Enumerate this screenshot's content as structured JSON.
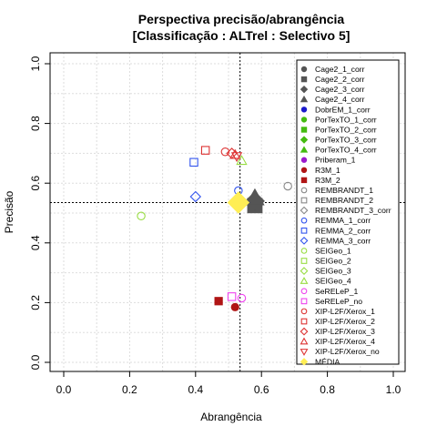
{
  "chart_data": {
    "type": "scatter",
    "title": "Perspectiva precisão/abrangência",
    "subtitle": "[Classificação : ALTrel : Selectivo 5]",
    "xlabel": "Abrangência",
    "ylabel": "Precisão",
    "xlim": [
      0,
      1
    ],
    "ylim": [
      0,
      1
    ],
    "xticks": [
      "0.0",
      "0.2",
      "0.4",
      "0.6",
      "0.8",
      "1.0"
    ],
    "yticks": [
      "0.0",
      "0.2",
      "0.4",
      "0.6",
      "0.8",
      "1.0"
    ],
    "grid": true,
    "legend_position": "right",
    "reference_lines": {
      "x": 0.535,
      "y": 0.535
    },
    "series": [
      {
        "name": "Cage2_1_corr",
        "symbol": "circle",
        "color": "#555555",
        "filled": true,
        "x": 0.58,
        "y": 0.53
      },
      {
        "name": "Cage2_2_corr",
        "symbol": "square",
        "color": "#555555",
        "filled": true,
        "x": 0.58,
        "y": 0.525
      },
      {
        "name": "Cage2_3_corr",
        "symbol": "diamond",
        "color": "#555555",
        "filled": true,
        "x": 0.58,
        "y": 0.54
      },
      {
        "name": "Cage2_4_corr",
        "symbol": "triangle",
        "color": "#555555",
        "filled": true,
        "x": 0.58,
        "y": 0.55
      },
      {
        "name": "DobrEM_1_corr",
        "symbol": "circle",
        "color": "#1a1acc",
        "filled": true,
        "x": null,
        "y": null
      },
      {
        "name": "PorTexTO_1_corr",
        "symbol": "circle",
        "color": "#44bb11",
        "filled": true,
        "x": null,
        "y": null
      },
      {
        "name": "PorTexTO_2_corr",
        "symbol": "square",
        "color": "#44bb11",
        "filled": true,
        "x": null,
        "y": null
      },
      {
        "name": "PorTexTO_3_corr",
        "symbol": "diamond",
        "color": "#44bb11",
        "filled": true,
        "x": null,
        "y": null
      },
      {
        "name": "PorTexTO_4_corr",
        "symbol": "triangle",
        "color": "#44bb11",
        "filled": true,
        "x": null,
        "y": null
      },
      {
        "name": "Priberam_1",
        "symbol": "circle",
        "color": "#9b1acc",
        "filled": true,
        "x": null,
        "y": null
      },
      {
        "name": "R3M_1",
        "symbol": "circle",
        "color": "#b01515",
        "filled": true,
        "x": 0.52,
        "y": 0.185
      },
      {
        "name": "R3M_2",
        "symbol": "square",
        "color": "#b01515",
        "filled": true,
        "x": 0.47,
        "y": 0.205
      },
      {
        "name": "REMBRANDT_1",
        "symbol": "circle",
        "color": "#888888",
        "filled": false,
        "x": 0.68,
        "y": 0.59
      },
      {
        "name": "REMBRANDT_2",
        "symbol": "square",
        "color": "#888888",
        "filled": false,
        "x": null,
        "y": null
      },
      {
        "name": "REMBRANDT_3_corr",
        "symbol": "diamond",
        "color": "#888888",
        "filled": false,
        "x": null,
        "y": null
      },
      {
        "name": "REMMA_1_corr",
        "symbol": "circle",
        "color": "#3355ee",
        "filled": false,
        "x": 0.53,
        "y": 0.575
      },
      {
        "name": "REMMA_2_corr",
        "symbol": "square",
        "color": "#3355ee",
        "filled": false,
        "x": 0.395,
        "y": 0.67
      },
      {
        "name": "REMMA_3_corr",
        "symbol": "diamond",
        "color": "#3355ee",
        "filled": false,
        "x": 0.4,
        "y": 0.555
      },
      {
        "name": "SEIGeo_1",
        "symbol": "circle",
        "color": "#99dd44",
        "filled": false,
        "x": 0.235,
        "y": 0.49
      },
      {
        "name": "SEIGeo_2",
        "symbol": "square",
        "color": "#99dd44",
        "filled": false,
        "x": null,
        "y": null
      },
      {
        "name": "SEIGeo_3",
        "symbol": "diamond",
        "color": "#99dd44",
        "filled": false,
        "x": null,
        "y": null
      },
      {
        "name": "SEIGeo_4",
        "symbol": "triangle",
        "color": "#99dd44",
        "filled": false,
        "x": 0.54,
        "y": 0.675
      },
      {
        "name": "SeRELeP_1",
        "symbol": "circle",
        "color": "#ee44ee",
        "filled": false,
        "x": 0.54,
        "y": 0.215
      },
      {
        "name": "SeRELeP_no",
        "symbol": "square",
        "color": "#ee44ee",
        "filled": false,
        "x": 0.51,
        "y": 0.22
      },
      {
        "name": "XIP-L2F/Xerox_1",
        "symbol": "circle",
        "color": "#dd3333",
        "filled": false,
        "x": 0.49,
        "y": 0.705
      },
      {
        "name": "XIP-L2F/Xerox_2",
        "symbol": "square",
        "color": "#dd3333",
        "filled": false,
        "x": 0.43,
        "y": 0.71
      },
      {
        "name": "XIP-L2F/Xerox_3",
        "symbol": "diamond",
        "color": "#dd3333",
        "filled": false,
        "x": 0.51,
        "y": 0.7
      },
      {
        "name": "XIP-L2F/Xerox_4",
        "symbol": "triangle",
        "color": "#dd3333",
        "filled": false,
        "x": 0.52,
        "y": 0.695
      },
      {
        "name": "XIP-L2F/Xerox_no",
        "symbol": "triangle-down",
        "color": "#dd3333",
        "filled": false,
        "x": 0.525,
        "y": 0.69
      },
      {
        "name": "MÉDIA",
        "symbol": "diamond",
        "color": "#ffee55",
        "filled": true,
        "x": 0.53,
        "y": 0.535
      }
    ]
  }
}
